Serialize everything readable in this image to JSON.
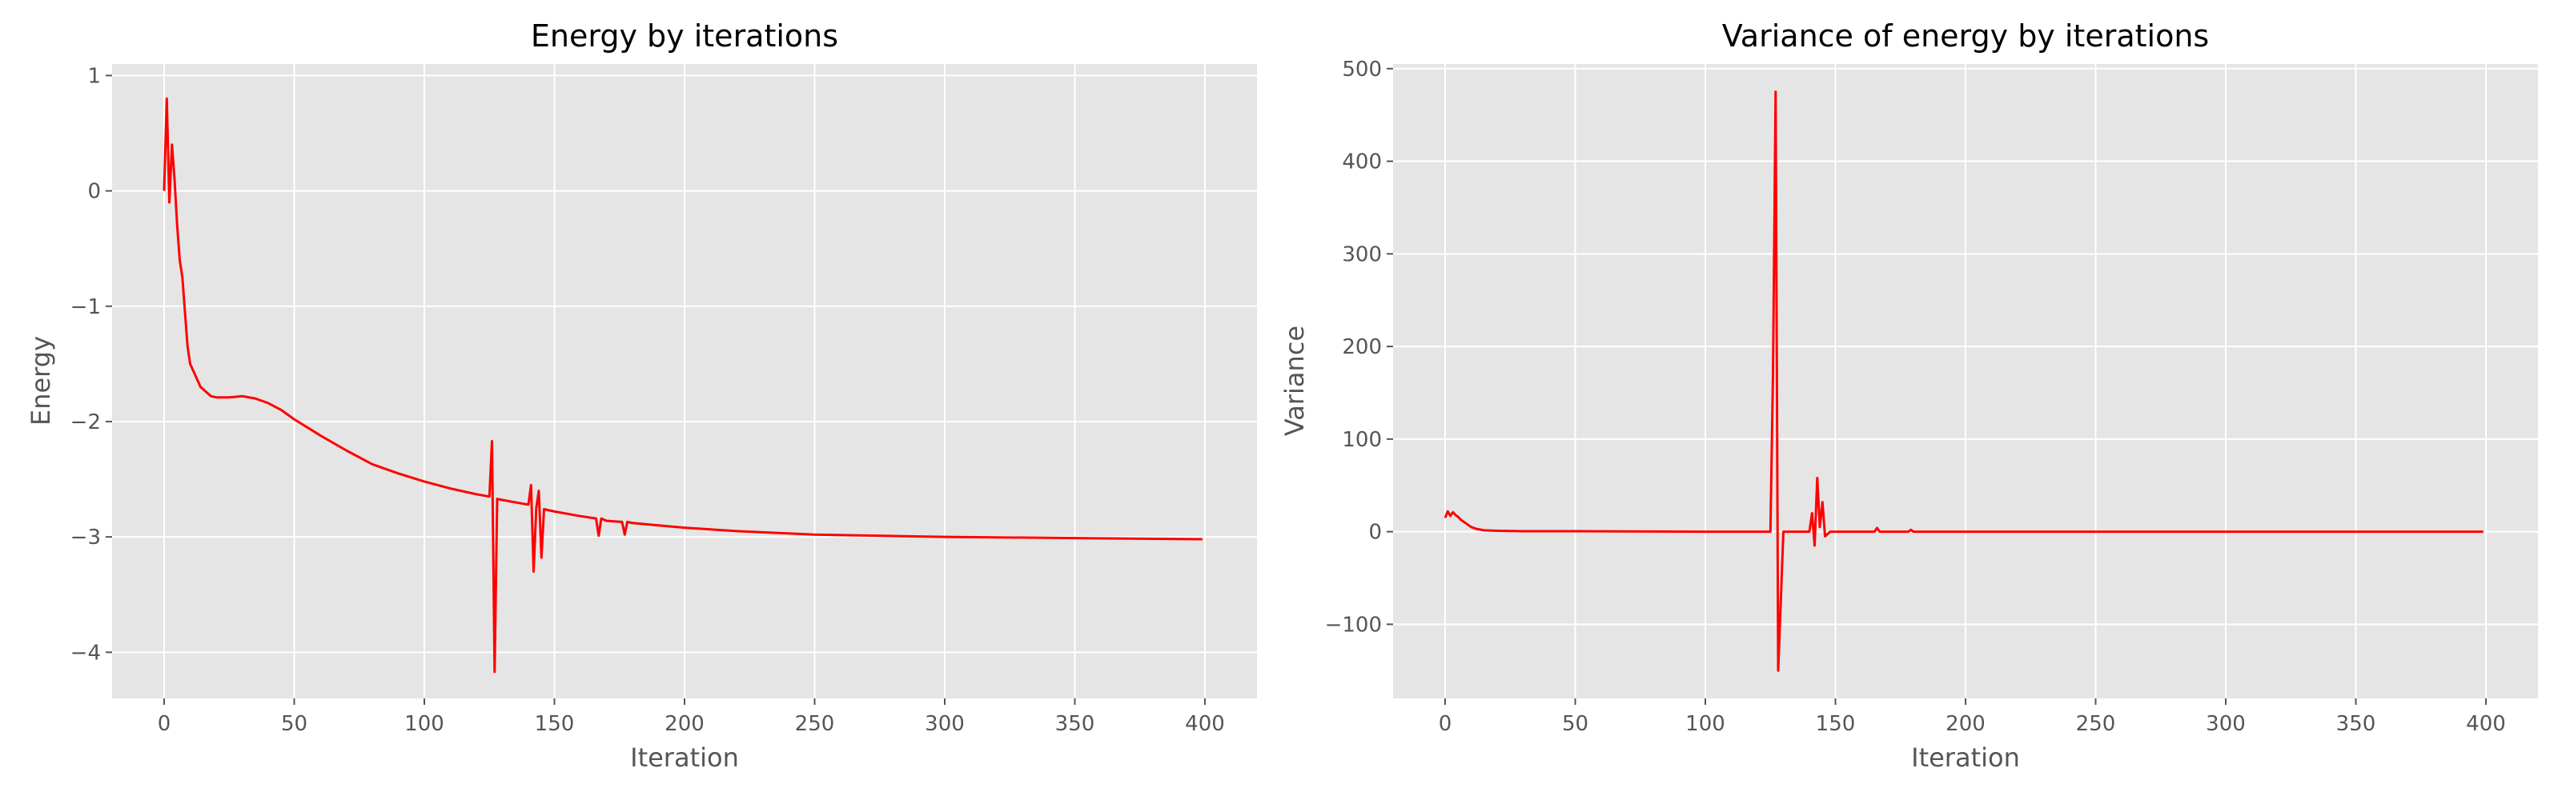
{
  "colors": {
    "background": "#ffffff",
    "axes_face": "#e5e5e5",
    "grid": "#ffffff",
    "line": "#ff0000",
    "text": "#555555"
  },
  "chart_data": [
    {
      "type": "line",
      "title": "Energy by iterations",
      "xlabel": "Iteration",
      "ylabel": "Energy",
      "xlim": [
        -20,
        420
      ],
      "ylim": [
        -4.4,
        1.1
      ],
      "xticks": [
        0,
        50,
        100,
        150,
        200,
        250,
        300,
        350,
        400
      ],
      "yticks": [
        1,
        0,
        -1,
        -2,
        -3,
        -4
      ],
      "ytick_labels": [
        "1",
        "0",
        "−1",
        "−2",
        "−3",
        "−4"
      ],
      "grid": true,
      "series": [
        {
          "color": "#ff0000",
          "x": [
            0,
            1,
            2,
            3,
            4,
            5,
            6,
            7,
            8,
            9,
            10,
            12,
            14,
            16,
            18,
            20,
            25,
            30,
            35,
            40,
            45,
            50,
            55,
            60,
            70,
            80,
            90,
            100,
            110,
            120,
            125,
            126,
            127,
            128,
            130,
            140,
            141,
            142,
            143,
            144,
            145,
            146,
            150,
            160,
            166,
            167,
            168,
            170,
            176,
            177,
            178,
            180,
            190,
            200,
            220,
            250,
            300,
            350,
            399
          ],
          "y": [
            0.0,
            0.8,
            -0.1,
            0.4,
            0.1,
            -0.3,
            -0.6,
            -0.75,
            -1.05,
            -1.35,
            -1.5,
            -1.6,
            -1.7,
            -1.74,
            -1.78,
            -1.79,
            -1.79,
            -1.78,
            -1.8,
            -1.84,
            -1.9,
            -1.98,
            -2.05,
            -2.12,
            -2.25,
            -2.37,
            -2.45,
            -2.52,
            -2.58,
            -2.63,
            -2.65,
            -2.17,
            -4.17,
            -2.67,
            -2.68,
            -2.72,
            -2.55,
            -3.3,
            -2.75,
            -2.6,
            -3.18,
            -2.76,
            -2.78,
            -2.82,
            -2.84,
            -2.99,
            -2.84,
            -2.86,
            -2.87,
            -2.98,
            -2.87,
            -2.88,
            -2.9,
            -2.92,
            -2.95,
            -2.98,
            -3.0,
            -3.01,
            -3.02
          ]
        }
      ]
    },
    {
      "type": "line",
      "title": "Variance of energy by iterations",
      "xlabel": "Iteration",
      "ylabel": "Variance",
      "xlim": [
        -20,
        420
      ],
      "ylim": [
        -180,
        505
      ],
      "xticks": [
        0,
        50,
        100,
        150,
        200,
        250,
        300,
        350,
        400
      ],
      "yticks": [
        500,
        400,
        300,
        200,
        100,
        0,
        -100
      ],
      "ytick_labels": [
        "500",
        "400",
        "300",
        "200",
        "100",
        "0",
        "−100"
      ],
      "grid": true,
      "series": [
        {
          "color": "#ff0000",
          "x": [
            0,
            1,
            2,
            3,
            4,
            5,
            6,
            8,
            10,
            12,
            15,
            20,
            30,
            50,
            100,
            125,
            126,
            127,
            128,
            130,
            140,
            141,
            142,
            143,
            144,
            145,
            146,
            148,
            165,
            166,
            167,
            178,
            179,
            180,
            200,
            300,
            399
          ],
          "y": [
            15,
            22,
            17,
            21,
            18,
            16,
            13,
            9,
            5,
            3,
            1.5,
            1,
            0.5,
            0.5,
            0,
            0,
            170,
            475,
            -150,
            0,
            0,
            20,
            -15,
            58,
            5,
            32,
            -5,
            0,
            0,
            4,
            0,
            0,
            2,
            0,
            0,
            0,
            0
          ]
        }
      ]
    }
  ]
}
